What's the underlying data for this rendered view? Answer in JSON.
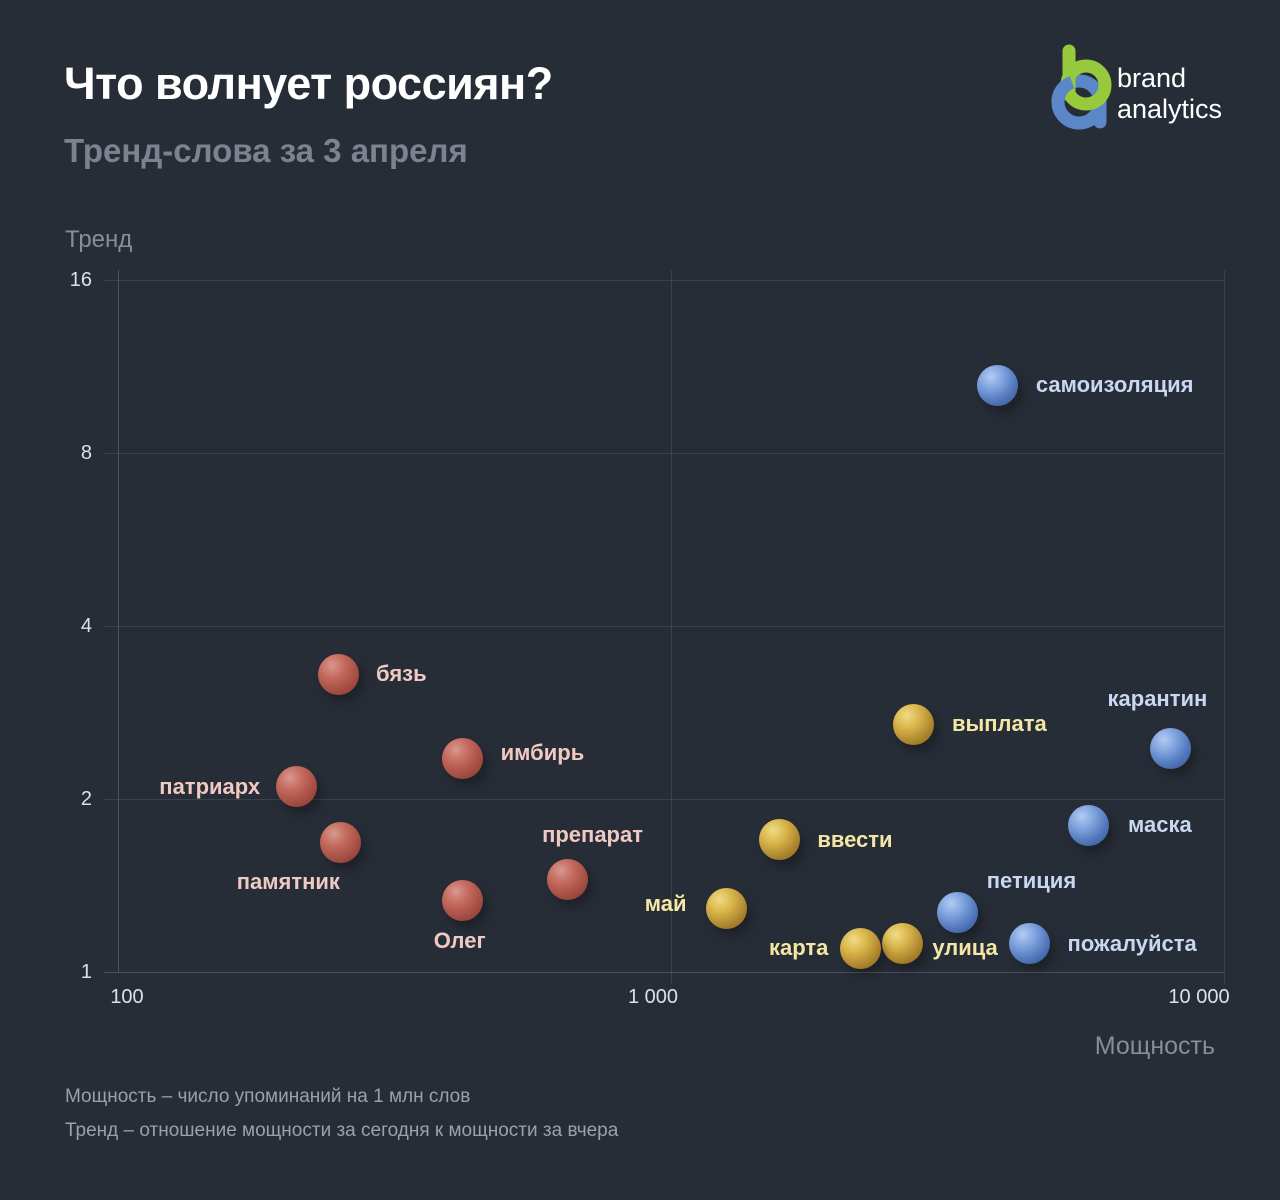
{
  "header": {
    "title": "Что волнует россиян?",
    "subtitle": "Тренд-слова за 3 апреля"
  },
  "logo": {
    "line1": "brand",
    "line2": "analytics",
    "green": "#97c93d",
    "blue": "#5b87c9"
  },
  "chart_data": {
    "type": "scatter",
    "xlabel": "Мощность",
    "ylabel": "Тренд",
    "x_scale": "log10",
    "y_scale": "log2",
    "xlim": [
      100,
      10000
    ],
    "ylim": [
      1,
      16
    ],
    "x_ticks": [
      {
        "value": 100,
        "label": "100"
      },
      {
        "value": 1000,
        "label": "1 000"
      },
      {
        "value": 10000,
        "label": "10 000"
      }
    ],
    "y_ticks": [
      {
        "value": 16,
        "label": "16"
      },
      {
        "value": 8,
        "label": "8"
      },
      {
        "value": 4,
        "label": "4"
      },
      {
        "value": 2,
        "label": "2"
      },
      {
        "value": 1,
        "label": "1"
      }
    ],
    "grid": true,
    "legend": "none",
    "series": [
      {
        "name": "blue",
        "bubble_color": "#6f95d6",
        "label_color": "#c9d7f3",
        "points": [
          {
            "word": "самоизоляция",
            "power": 3900,
            "trend": 10.5,
            "anchor": "left",
            "dx": 38,
            "dy": 0
          },
          {
            "word": "карантин",
            "power": 8000,
            "trend": 2.45,
            "anchor": "center",
            "dx": -13,
            "dy": -49
          },
          {
            "word": "маска",
            "power": 5700,
            "trend": 1.8,
            "anchor": "left",
            "dx": 39,
            "dy": 0
          },
          {
            "word": "петиция",
            "power": 3300,
            "trend": 1.27,
            "anchor": "left",
            "dx": 29,
            "dy": -31
          },
          {
            "word": "пожалуйста",
            "power": 4450,
            "trend": 1.12,
            "anchor": "left",
            "dx": 38,
            "dy": 0
          }
        ]
      },
      {
        "name": "red",
        "bubble_color": "#bc6458",
        "label_color": "#f0c9c3",
        "points": [
          {
            "word": "бязь",
            "power": 250,
            "trend": 3.3,
            "anchor": "left",
            "dx": 38,
            "dy": 0
          },
          {
            "word": "имбирь",
            "power": 420,
            "trend": 2.35,
            "anchor": "left",
            "dx": 38,
            "dy": -6
          },
          {
            "word": "патриарх",
            "power": 210,
            "trend": 2.1,
            "anchor": "right",
            "dx": -36,
            "dy": 0
          },
          {
            "word": "памятник",
            "power": 253,
            "trend": 1.68,
            "anchor": "right",
            "dx": -1,
            "dy": 39
          },
          {
            "word": "препарат",
            "power": 650,
            "trend": 1.45,
            "anchor": "center",
            "dx": 25,
            "dy": -44
          },
          {
            "word": "Олег",
            "power": 420,
            "trend": 1.33,
            "anchor": "center",
            "dx": -3,
            "dy": 40
          }
        ]
      },
      {
        "name": "yellow",
        "bubble_color": "#d4b84a",
        "label_color": "#f4e7a5",
        "points": [
          {
            "word": "выплата",
            "power": 2750,
            "trend": 2.7,
            "anchor": "left",
            "dx": 38,
            "dy": 0
          },
          {
            "word": "ввести",
            "power": 1570,
            "trend": 1.7,
            "anchor": "left",
            "dx": 38,
            "dy": 0
          },
          {
            "word": "май",
            "power": 1260,
            "trend": 1.29,
            "anchor": "right",
            "dx": -40,
            "dy": -4
          },
          {
            "word": "улица",
            "power": 2620,
            "trend": 1.12,
            "anchor": "left",
            "dx": 30,
            "dy": 4
          },
          {
            "word": "карта",
            "power": 2200,
            "trend": 1.1,
            "anchor": "right",
            "dx": -32,
            "dy": 0
          }
        ]
      }
    ]
  },
  "footnotes": [
    "Мощность – число упоминаний на 1 млн слов",
    "Тренд – отношение мощности за сегодня к мощности за вчера"
  ]
}
